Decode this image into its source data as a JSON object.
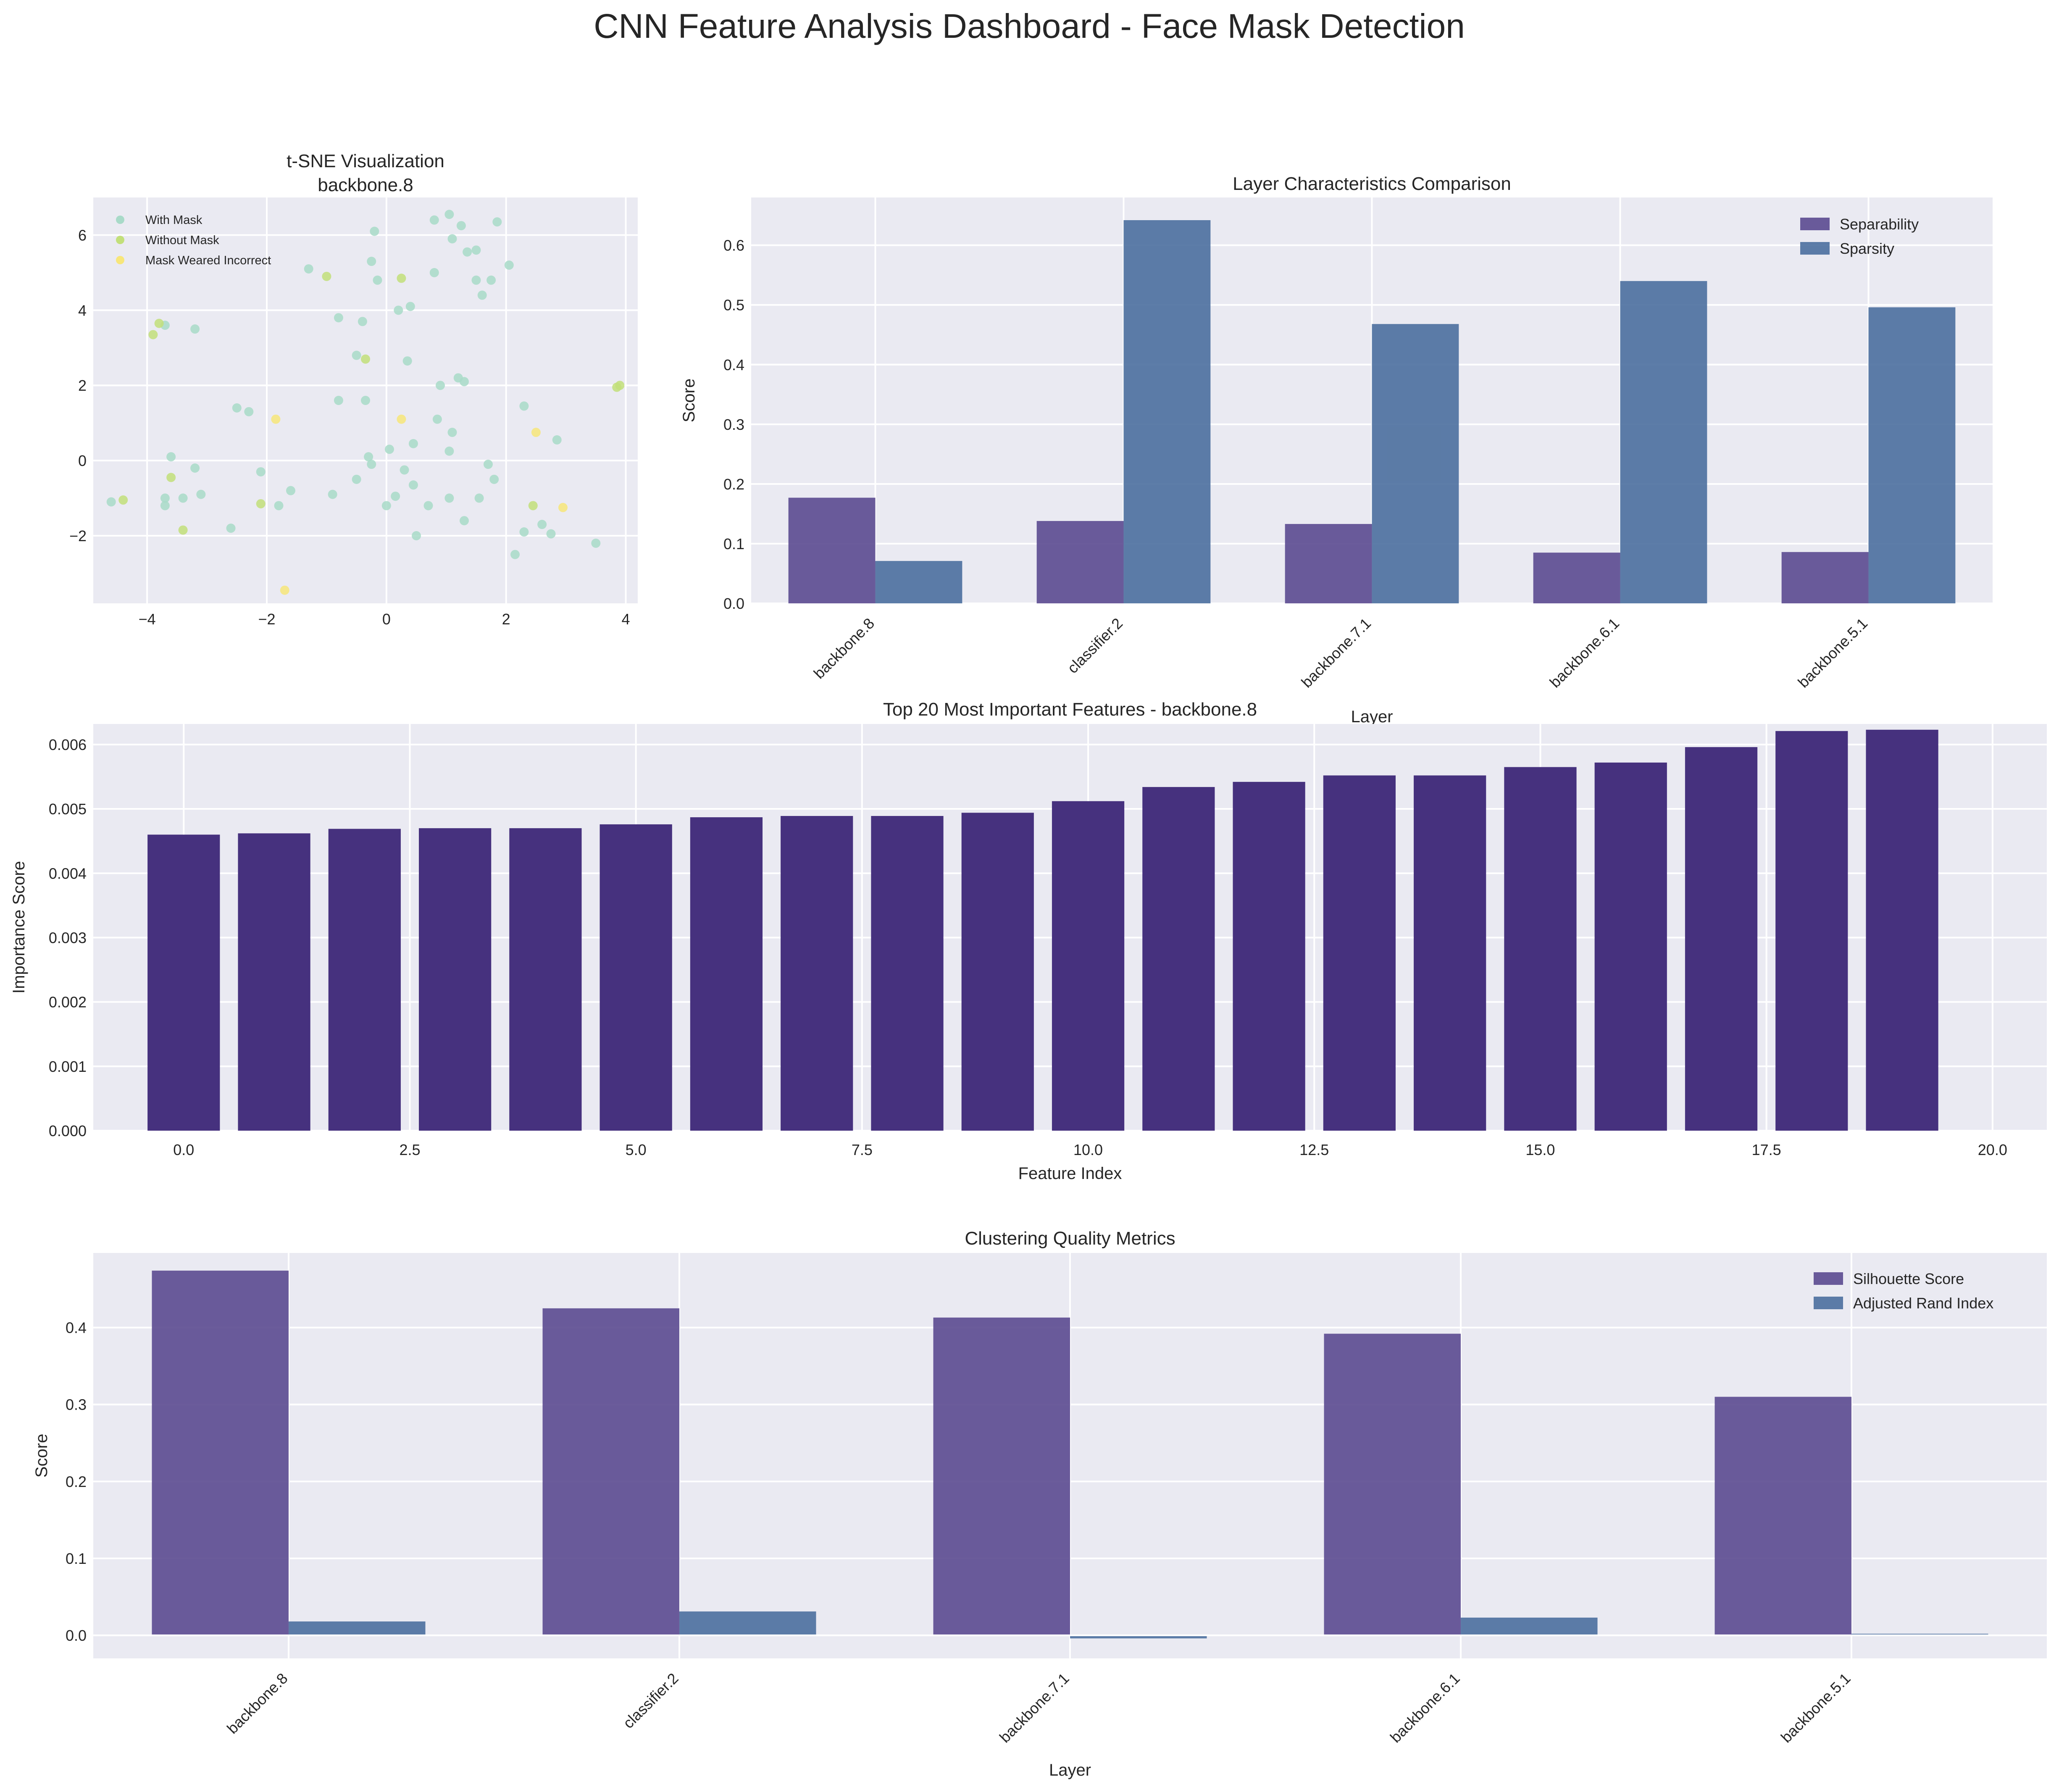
{
  "figure": {
    "suptitle": "CNN Feature Analysis Dashboard - Face Mask Detection"
  },
  "chart_data": [
    {
      "id": "tsne",
      "type": "scatter",
      "title": "t-SNE Visualization\nbackbone.8",
      "xlabel": "",
      "ylabel": "",
      "xlim": [
        -4.9,
        4.2
      ],
      "ylim": [
        -3.8,
        7.0
      ],
      "xticks": [
        -4,
        -2,
        0,
        2,
        4
      ],
      "yticks": [
        -2,
        0,
        2,
        4,
        6
      ],
      "xtick_labels": [
        "−4",
        "−2",
        "0",
        "2",
        "4"
      ],
      "ytick_labels": [
        "−2",
        "0",
        "2",
        "4",
        "6"
      ],
      "legend_position": "upper-left",
      "grid": true,
      "series": [
        {
          "name": "With Mask",
          "color": "#A8DAC8",
          "points": [
            [
              -4.6,
              -1.1
            ],
            [
              -3.7,
              -1.0
            ],
            [
              -3.7,
              -1.2
            ],
            [
              -3.6,
              0.1
            ],
            [
              -3.7,
              3.6
            ],
            [
              -3.2,
              3.5
            ],
            [
              -3.4,
              -1.0
            ],
            [
              -3.2,
              -0.2
            ],
            [
              -3.1,
              -0.9
            ],
            [
              -2.6,
              -1.8
            ],
            [
              -2.5,
              1.4
            ],
            [
              -2.3,
              1.3
            ],
            [
              -2.1,
              -0.3
            ],
            [
              -1.8,
              -1.2
            ],
            [
              -1.6,
              -0.8
            ],
            [
              -1.3,
              5.1
            ],
            [
              -0.9,
              -0.9
            ],
            [
              -0.8,
              3.8
            ],
            [
              -0.8,
              1.6
            ],
            [
              -0.5,
              2.8
            ],
            [
              -0.5,
              -0.5
            ],
            [
              -0.4,
              3.7
            ],
            [
              -0.35,
              1.6
            ],
            [
              -0.3,
              0.1
            ],
            [
              -0.25,
              -0.1
            ],
            [
              -0.25,
              5.3
            ],
            [
              -0.2,
              6.1
            ],
            [
              -0.15,
              4.8
            ],
            [
              0.0,
              -1.2
            ],
            [
              0.05,
              0.3
            ],
            [
              0.15,
              -0.95
            ],
            [
              0.2,
              4.0
            ],
            [
              0.3,
              -0.25
            ],
            [
              0.35,
              2.65
            ],
            [
              0.4,
              4.1
            ],
            [
              0.45,
              0.45
            ],
            [
              0.45,
              -0.65
            ],
            [
              0.5,
              -2.0
            ],
            [
              0.7,
              -1.2
            ],
            [
              0.8,
              6.4
            ],
            [
              0.8,
              5.0
            ],
            [
              0.85,
              1.1
            ],
            [
              0.9,
              2.0
            ],
            [
              1.05,
              -1.0
            ],
            [
              1.05,
              0.25
            ],
            [
              1.05,
              6.55
            ],
            [
              1.1,
              0.75
            ],
            [
              1.1,
              5.9
            ],
            [
              1.2,
              2.2
            ],
            [
              1.25,
              6.25
            ],
            [
              1.3,
              2.1
            ],
            [
              1.3,
              -1.6
            ],
            [
              1.35,
              5.55
            ],
            [
              1.5,
              5.6
            ],
            [
              1.5,
              4.8
            ],
            [
              1.55,
              -1.0
            ],
            [
              1.6,
              4.4
            ],
            [
              1.7,
              -0.1
            ],
            [
              1.75,
              4.8
            ],
            [
              1.8,
              -0.5
            ],
            [
              1.85,
              6.35
            ],
            [
              2.05,
              5.2
            ],
            [
              2.15,
              -2.5
            ],
            [
              2.3,
              1.45
            ],
            [
              2.3,
              -1.9
            ],
            [
              2.6,
              -1.7
            ],
            [
              2.75,
              -1.95
            ],
            [
              2.85,
              0.55
            ],
            [
              3.5,
              -2.2
            ]
          ]
        },
        {
          "name": "Without Mask",
          "color": "#C2DF7A",
          "points": [
            [
              -4.4,
              -1.05
            ],
            [
              -3.9,
              3.35
            ],
            [
              -3.8,
              3.65
            ],
            [
              -3.6,
              -0.45
            ],
            [
              -3.4,
              -1.85
            ],
            [
              -2.1,
              -1.15
            ],
            [
              -1.0,
              4.9
            ],
            [
              -0.35,
              2.7
            ],
            [
              0.25,
              4.85
            ],
            [
              2.45,
              -1.2
            ],
            [
              3.85,
              1.95
            ],
            [
              3.9,
              2.0
            ]
          ]
        },
        {
          "name": "Mask Weared Incorrect",
          "color": "#F7E67A",
          "points": [
            [
              -1.85,
              1.1
            ],
            [
              -1.7,
              -3.45
            ],
            [
              0.25,
              1.1
            ],
            [
              2.5,
              0.75
            ],
            [
              2.95,
              -1.25
            ]
          ]
        }
      ]
    },
    {
      "id": "layers",
      "type": "bar",
      "title": "Layer Characteristics Comparison",
      "xlabel": "Layer",
      "ylabel": "Score",
      "ylim": [
        0,
        0.68
      ],
      "yticks": [
        0.0,
        0.1,
        0.2,
        0.3,
        0.4,
        0.5,
        0.6
      ],
      "ytick_labels": [
        "0.0",
        "0.1",
        "0.2",
        "0.3",
        "0.4",
        "0.5",
        "0.6"
      ],
      "categories": [
        "backbone.8",
        "classifier.2",
        "backbone.7.1",
        "backbone.6.1",
        "backbone.5.1"
      ],
      "legend_position": "upper-right",
      "grid": true,
      "series": [
        {
          "name": "Separability",
          "color": "#5B4A90",
          "values": [
            0.177,
            0.138,
            0.133,
            0.085,
            0.086
          ]
        },
        {
          "name": "Sparsity",
          "color": "#4B6F9E",
          "values": [
            0.071,
            0.642,
            0.468,
            0.54,
            0.496
          ]
        }
      ]
    },
    {
      "id": "importance",
      "type": "bar",
      "title": "Top 20 Most Important Features - backbone.8",
      "xlabel": "Feature Index",
      "ylabel": "Importance Score",
      "xlim": [
        -1.0,
        20.6
      ],
      "ylim": [
        0,
        0.00632
      ],
      "xticks": [
        0.0,
        2.5,
        5.0,
        7.5,
        10.0,
        12.5,
        15.0,
        17.5,
        20.0
      ],
      "xtick_labels": [
        "0.0",
        "2.5",
        "5.0",
        "7.5",
        "10.0",
        "12.5",
        "15.0",
        "17.5",
        "20.0"
      ],
      "yticks": [
        0.0,
        0.001,
        0.002,
        0.003,
        0.004,
        0.005,
        0.006
      ],
      "ytick_labels": [
        "0.000",
        "0.001",
        "0.002",
        "0.003",
        "0.004",
        "0.005",
        "0.006"
      ],
      "grid": true,
      "color": "#46317E",
      "values": [
        0.0046,
        0.00462,
        0.00469,
        0.0047,
        0.0047,
        0.00476,
        0.00487,
        0.00489,
        0.00489,
        0.00494,
        0.00512,
        0.00534,
        0.00542,
        0.00552,
        0.00552,
        0.00565,
        0.00572,
        0.00596,
        0.00621,
        0.00623
      ]
    },
    {
      "id": "clustering",
      "type": "bar",
      "title": "Clustering Quality Metrics",
      "xlabel": "Layer",
      "ylabel": "Score",
      "ylim": [
        -0.03,
        0.497
      ],
      "yticks": [
        0.0,
        0.1,
        0.2,
        0.3,
        0.4
      ],
      "ytick_labels": [
        "0.0",
        "0.1",
        "0.2",
        "0.3",
        "0.4"
      ],
      "categories": [
        "backbone.8",
        "classifier.2",
        "backbone.7.1",
        "backbone.6.1",
        "backbone.5.1"
      ],
      "legend_position": "upper-right",
      "grid": true,
      "series": [
        {
          "name": "Silhouette Score",
          "color": "#5B4A90",
          "values": [
            0.474,
            0.425,
            0.413,
            0.392,
            0.31
          ]
        },
        {
          "name": "Adjusted Rand Index",
          "color": "#4B6F9E",
          "values": [
            0.018,
            0.031,
            -0.004,
            0.023,
            0.002
          ]
        }
      ]
    }
  ]
}
